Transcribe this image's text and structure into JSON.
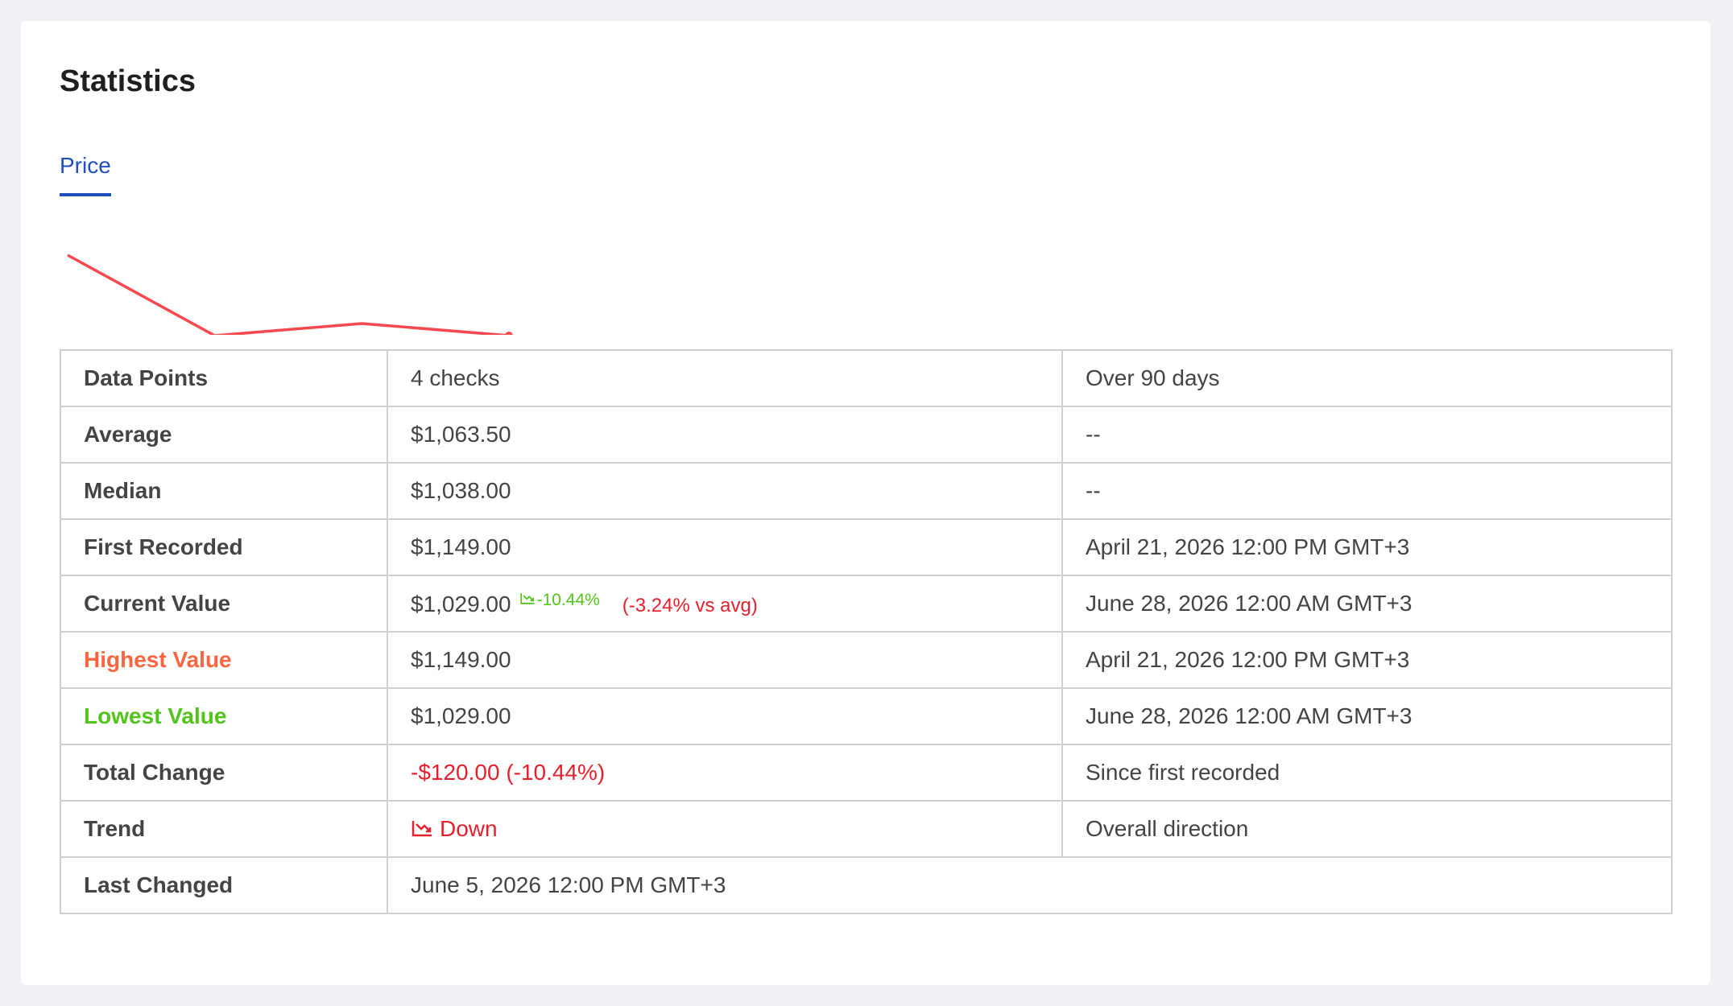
{
  "header": {
    "title": "Statistics"
  },
  "tabs": [
    {
      "label": "Price",
      "active": true
    }
  ],
  "sparkline": {
    "type": "line",
    "values": [
      1149,
      1029,
      1047,
      1029
    ],
    "color": "#f5484f"
  },
  "table": {
    "rows": [
      {
        "label": "Data Points",
        "value": "4 checks",
        "note": "Over 90 days"
      },
      {
        "label": "Average",
        "value": "$1,063.50",
        "note": "--"
      },
      {
        "label": "Median",
        "value": "$1,038.00",
        "note": "--"
      },
      {
        "label": "First Recorded",
        "value": "$1,149.00",
        "note": "April 21, 2026 12:00 PM GMT+3"
      },
      {
        "label": "Current Value",
        "value": "$1,029.00",
        "change": "-10.44%",
        "change_color": "#52c41a",
        "vs_avg": "(-3.24% vs avg)",
        "vs_avg_color": "#e5202e",
        "note": "June 28, 2026 12:00 AM GMT+3"
      },
      {
        "label": "Highest Value",
        "label_color": "#fa6541",
        "value": "$1,149.00",
        "note": "April 21, 2026 12:00 PM GMT+3"
      },
      {
        "label": "Lowest Value",
        "label_color": "#52c41a",
        "value": "$1,029.00",
        "note": "June 28, 2026 12:00 AM GMT+3"
      },
      {
        "label": "Total Change",
        "value": "-$120.00 (-10.44%)",
        "value_color": "#e5202e",
        "note": "Since first recorded"
      },
      {
        "label": "Trend",
        "value": "Down",
        "value_color": "#e5202e",
        "trend_icon": true,
        "note": "Overall direction"
      },
      {
        "label": "Last Changed",
        "value": "June 5, 2026 12:00 PM GMT+3"
      }
    ]
  }
}
